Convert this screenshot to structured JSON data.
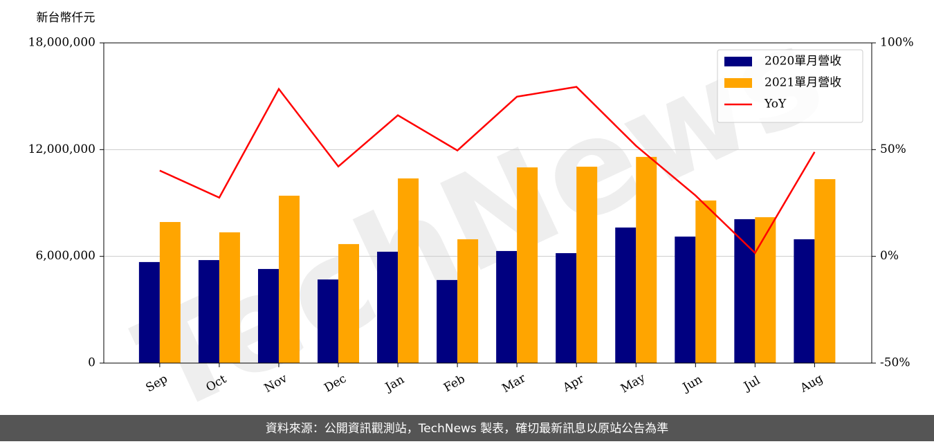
{
  "chart_data": {
    "type": "bar-line",
    "y_label": "新台幣仟元",
    "watermark": "TechNews",
    "footer": "資料來源：公開資訊觀測站，TechNews 製表，確切最新訊息以原站公告為準",
    "categories": [
      "Sep",
      "Oct",
      "Nov",
      "Dec",
      "Jan",
      "Feb",
      "Mar",
      "Apr",
      "May",
      "Jun",
      "Jul",
      "Aug"
    ],
    "series": [
      {
        "name": "2020單月營收",
        "color": "#000080",
        "type": "bar",
        "values": [
          5680000,
          5790000,
          5290000,
          4700000,
          6260000,
          4670000,
          6300000,
          6180000,
          7620000,
          7110000,
          8090000,
          6960000
        ]
      },
      {
        "name": "2021單月營收",
        "color": "#ffa500",
        "type": "bar",
        "values": [
          7930000,
          7350000,
          9410000,
          6690000,
          10380000,
          6960000,
          11000000,
          11040000,
          11590000,
          9140000,
          8200000,
          10340000
        ]
      },
      {
        "name": "YoY",
        "color": "#ff0000",
        "type": "line",
        "axis": "y2",
        "values": [
          40.2,
          27.5,
          78.4,
          42.1,
          66.1,
          49.6,
          74.8,
          79.4,
          51.8,
          28.5,
          1.6,
          48.9
        ]
      }
    ],
    "ylim": [
      0,
      18000000
    ],
    "yticks": [
      0,
      {
        "value": 6000000,
        "label": "6,000,000"
      },
      {
        "value": 12000000,
        "label": "12,000,000"
      },
      {
        "value": 18000000,
        "label": "18,000,000"
      }
    ],
    "y2lim": [
      -50,
      100
    ],
    "y2ticks": [
      {
        "value": -50,
        "label": "-50%"
      },
      {
        "value": 0,
        "label": "0%"
      },
      {
        "value": 50,
        "label": "50%"
      },
      {
        "value": 100,
        "label": "100%"
      }
    ],
    "grid": true,
    "legend": "upper right"
  }
}
